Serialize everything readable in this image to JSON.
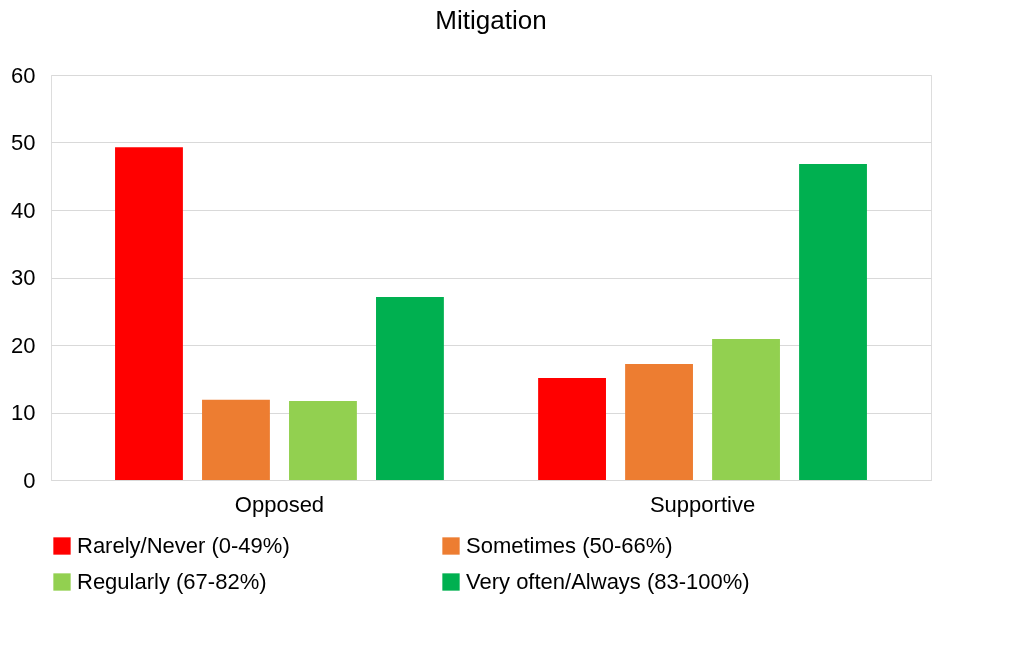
{
  "chart_data": {
    "type": "bar",
    "title": "Mitigation",
    "categories": [
      "Opposed",
      "Supportive"
    ],
    "series": [
      {
        "name": "Rarely/Never (0-49%)",
        "color": "#ff0000",
        "values": [
          49.3,
          15.1
        ]
      },
      {
        "name": "Sometimes (50-66%)",
        "color": "#ed7d31",
        "values": [
          11.9,
          17.2
        ]
      },
      {
        "name": "Regularly (67-82%)",
        "color": "#92d050",
        "values": [
          11.7,
          20.9
        ]
      },
      {
        "name": "Very often/Always (83-100%)",
        "color": "#00b050",
        "values": [
          27.1,
          46.8
        ]
      }
    ],
    "ylim": [
      0,
      60
    ],
    "yticks": [
      0,
      10,
      20,
      30,
      40,
      50,
      60
    ],
    "grid": "y",
    "legend": "bottom"
  }
}
